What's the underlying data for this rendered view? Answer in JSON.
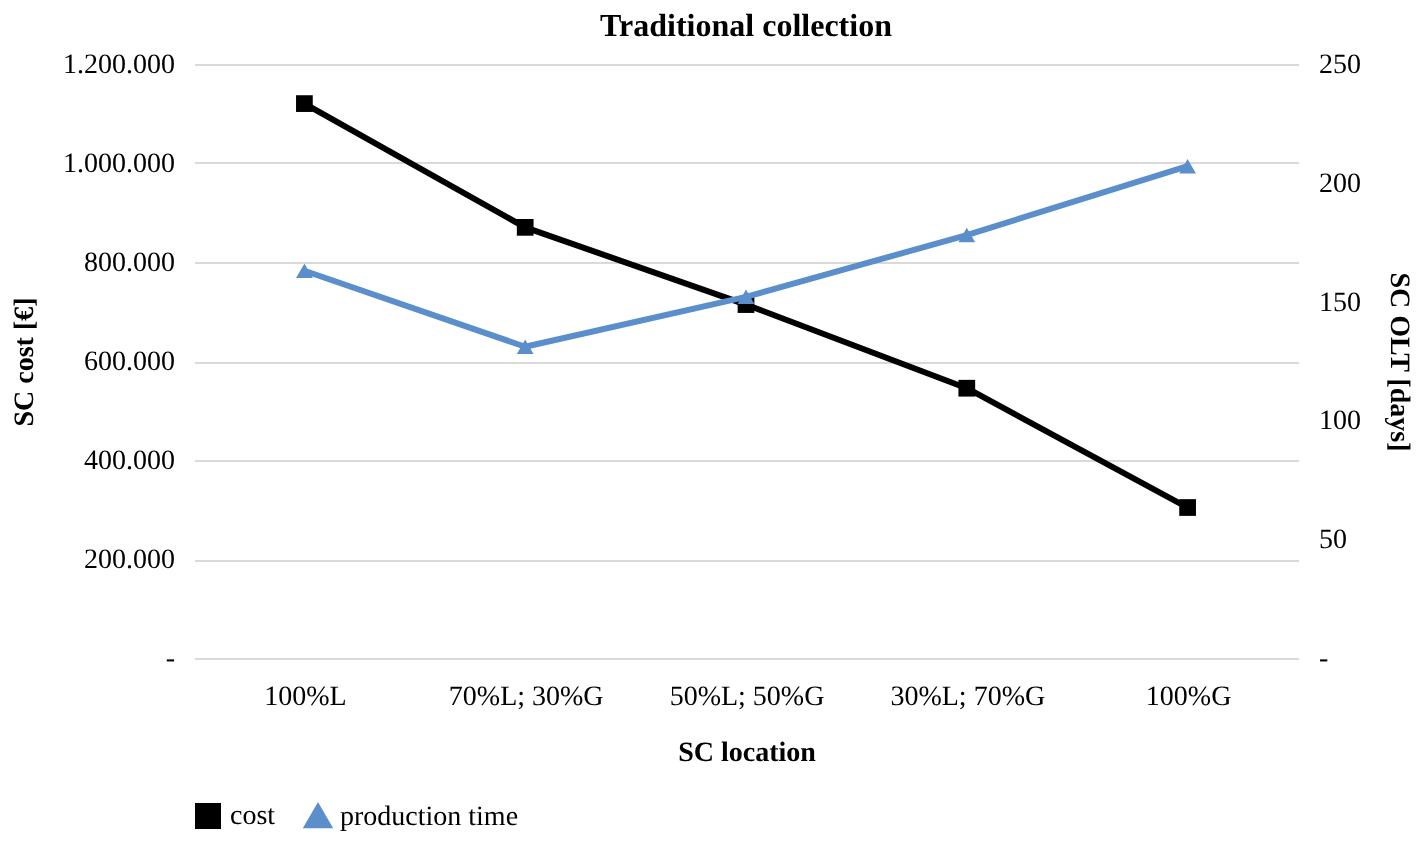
{
  "chart_data": {
    "type": "line",
    "title": "Traditional collection",
    "xlabel": "SC location",
    "ylabel": "SC cost [€]",
    "y2label": "SC OLT  [days]",
    "categories": [
      "100%L",
      "70%L; 30%G",
      "50%L; 50%G",
      "30%L; 70%G",
      "100%G"
    ],
    "series": [
      {
        "name": "cost",
        "color": "#000000",
        "marker": "square",
        "values": [
          1120000,
          870000,
          714000,
          545000,
          304000
        ]
      },
      {
        "name": "production time",
        "color": "#5b8fcb",
        "marker": "triangle",
        "axis": "y2",
        "values": [
          163,
          131,
          152,
          178,
          207
        ]
      }
    ],
    "ylim": [
      0,
      1200000
    ],
    "yticks": [
      {
        "value": 0,
        "label": "-"
      },
      {
        "value": 200000,
        "label": "200.000"
      },
      {
        "value": 400000,
        "label": "400.000"
      },
      {
        "value": 600000,
        "label": "600.000"
      },
      {
        "value": 800000,
        "label": "800.000"
      },
      {
        "value": 1000000,
        "label": "1.000.000"
      },
      {
        "value": 1200000,
        "label": "1.200.000"
      }
    ],
    "y2lim": [
      0,
      250
    ],
    "y2ticks": [
      {
        "value": 0,
        "label": "-"
      },
      50,
      100,
      150,
      200,
      250
    ],
    "grid": "y",
    "legend": "bottom",
    "line_style": "solid"
  }
}
